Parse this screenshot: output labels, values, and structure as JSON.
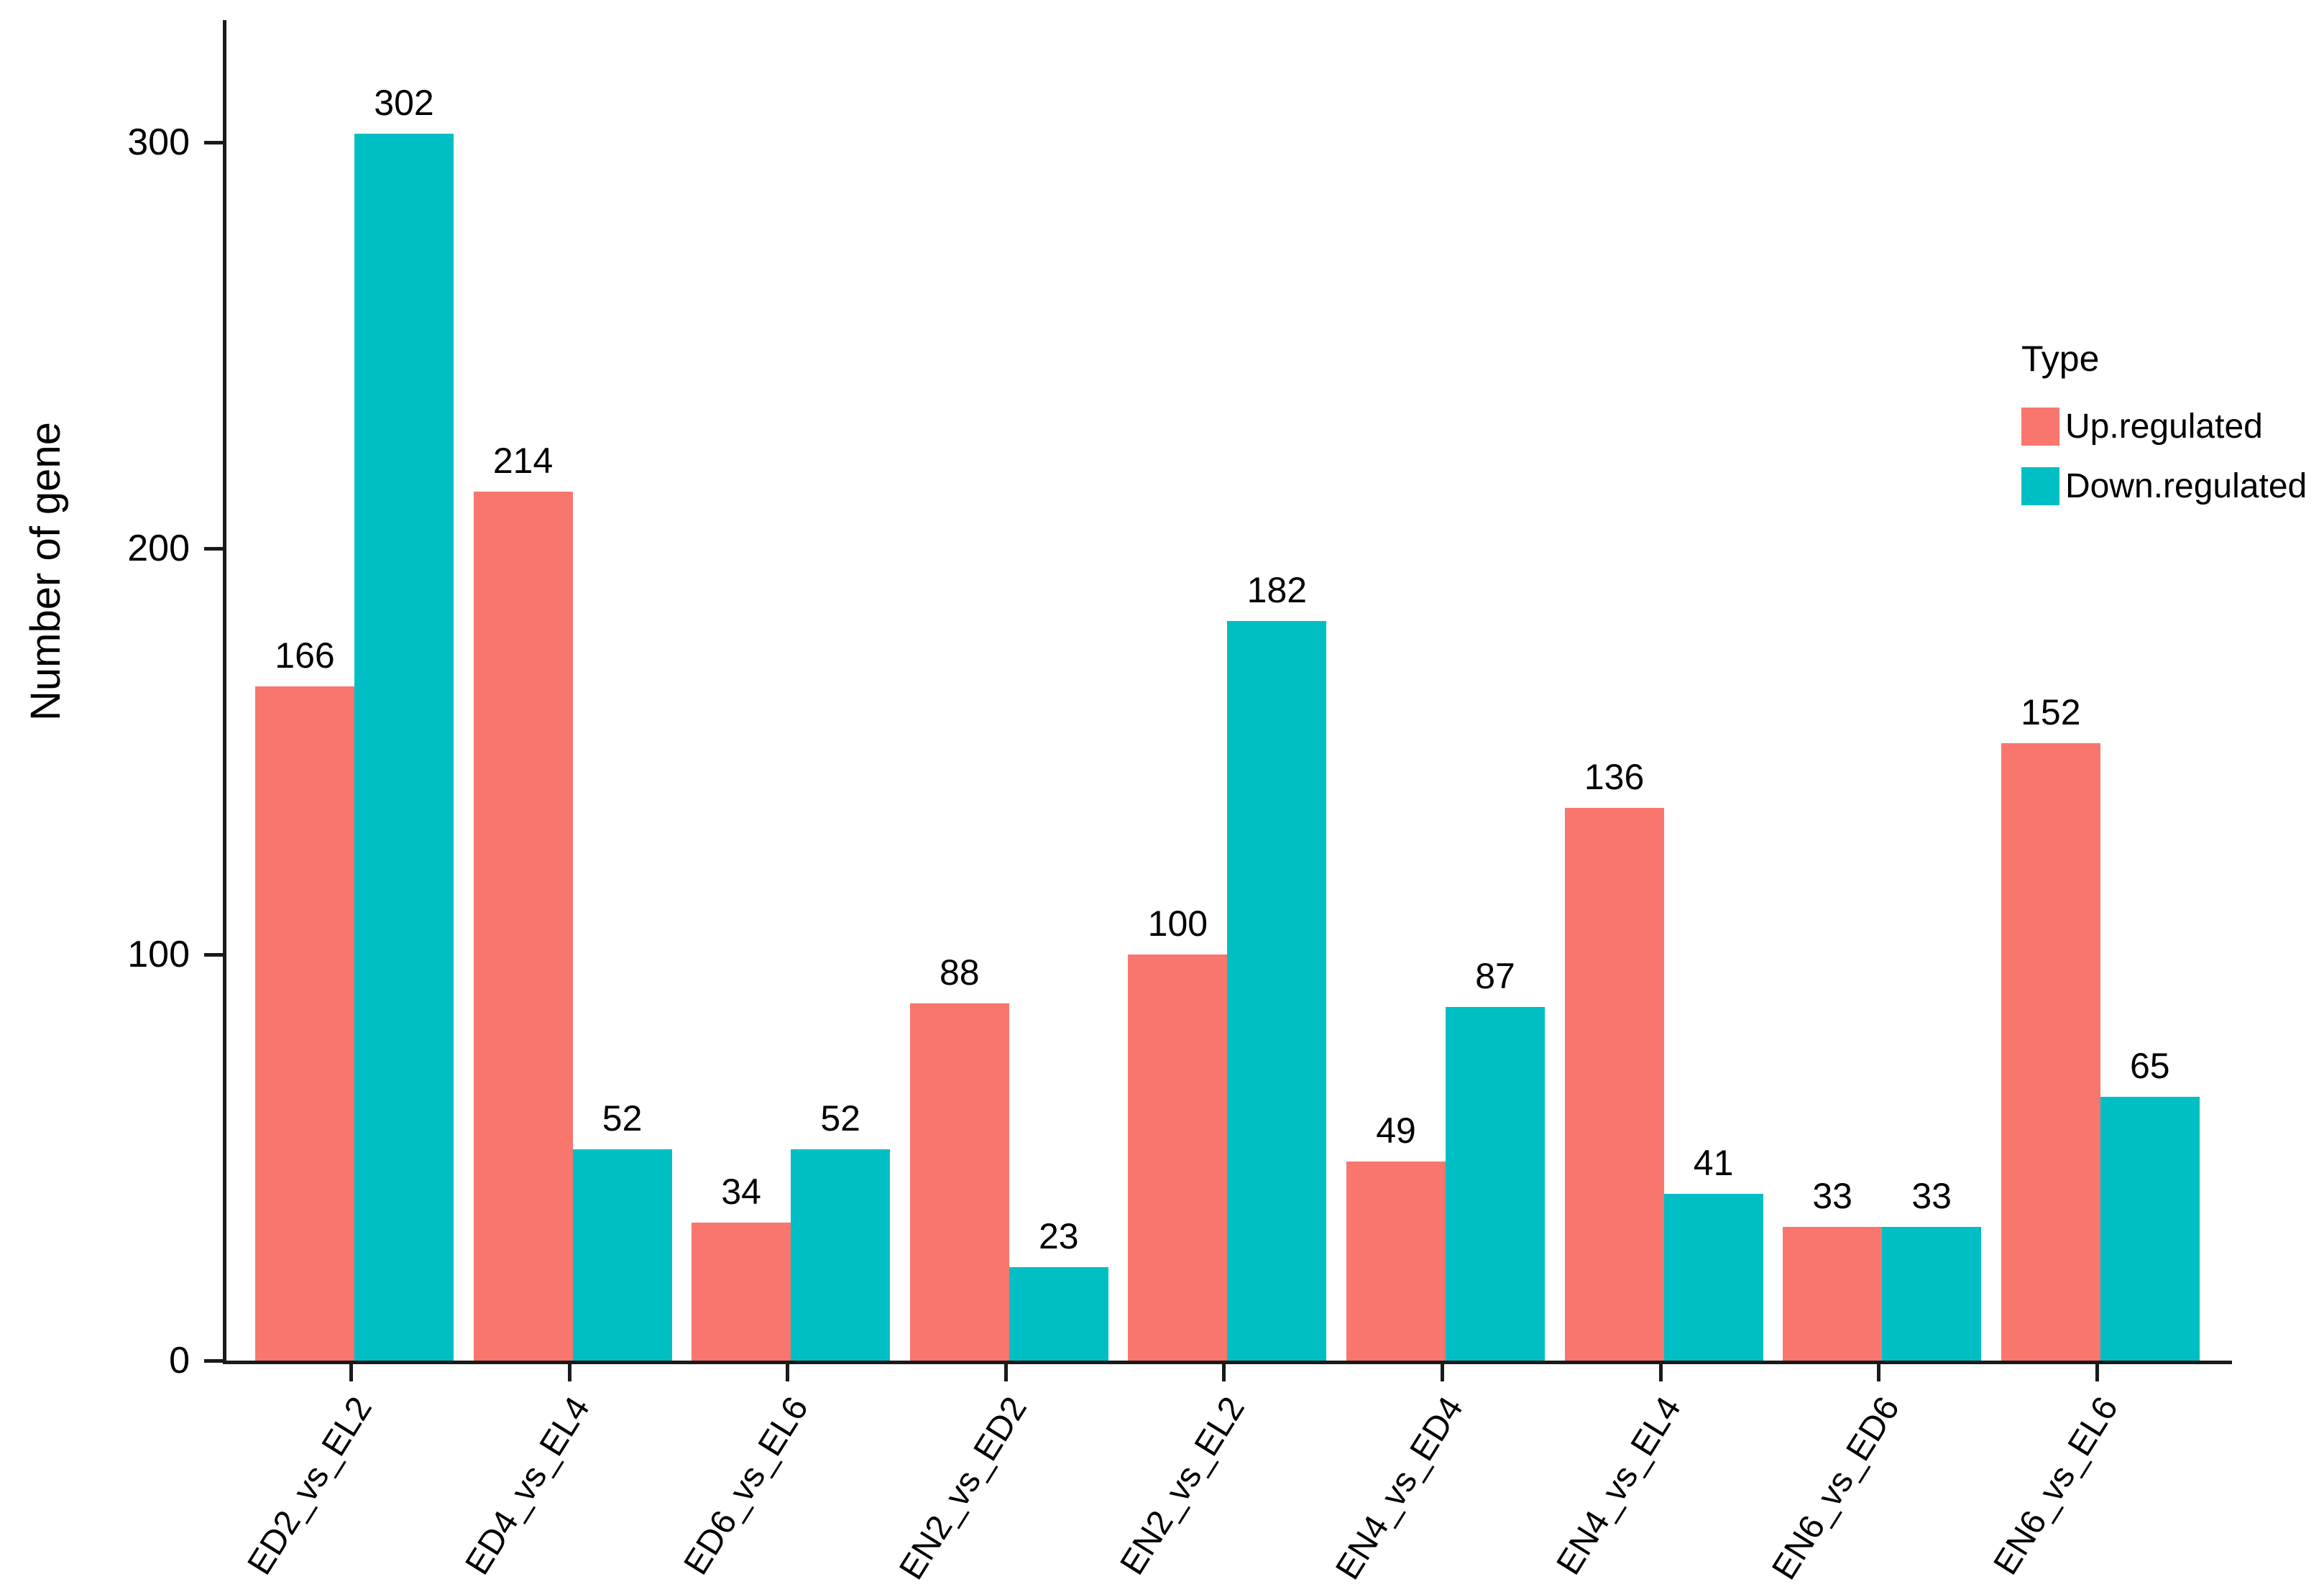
{
  "chart_data": {
    "type": "bar",
    "ylabel": "Number of gene",
    "categories": [
      "ED2_vs_EL2",
      "ED4_vs_EL4",
      "ED6_vs_EL6",
      "EN2_vs_ED2",
      "EN2_vs_EL2",
      "EN4_vs_ED4",
      "EN4_vs_EL4",
      "EN6_vs_ED6",
      "EN6_vs_EL6"
    ],
    "series": [
      {
        "name": "Up.regulated",
        "color": "#F8766D",
        "values": [
          166,
          214,
          34,
          88,
          100,
          49,
          136,
          33,
          152
        ]
      },
      {
        "name": "Down.regulated",
        "color": "#00BFC4",
        "values": [
          302,
          52,
          52,
          23,
          182,
          87,
          41,
          33,
          65
        ]
      }
    ],
    "ylim": [
      0,
      330
    ],
    "yticks": [
      0,
      100,
      200,
      300
    ],
    "legend_title": "Type",
    "legend_position": "right",
    "grid": false,
    "bar_labels": true,
    "x_tick_rotation_deg": 58
  },
  "colors": {
    "up_regulated": "#F8766D",
    "down_regulated": "#00BFC4",
    "axis": "#1a1a1a",
    "text": "#000000",
    "background": "#ffffff"
  }
}
